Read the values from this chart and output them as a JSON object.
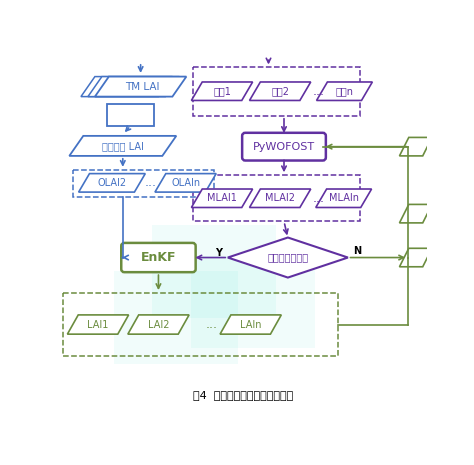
{
  "title": "图4  冬小麦产量估测技术流程图",
  "bg_color": "#ffffff",
  "blue": "#4472C4",
  "purple": "#6030A0",
  "olive": "#6B8C3E",
  "tm_lai_label": "TM LAI",
  "adj_label": "尺度调整 LAI",
  "olai2_label": "OLAI2",
  "olain_label": "OLAIn",
  "enkf_label": "EnKF",
  "pywofost_label": "PyWOFOST",
  "param1_label": "参数1",
  "param2_label": "参数2",
  "paramn_label": "参数n",
  "mlai1_label": "MLAI1",
  "mlai2_label": "MLAI2",
  "mlain_label": "MLAIn",
  "diamond_label": "有无观测数据？",
  "lai1_label": "LAI1",
  "lai2_label": "LAI2",
  "lain_label": "LAIn",
  "y_label": "Y",
  "n_label": "N",
  "dots": "..."
}
